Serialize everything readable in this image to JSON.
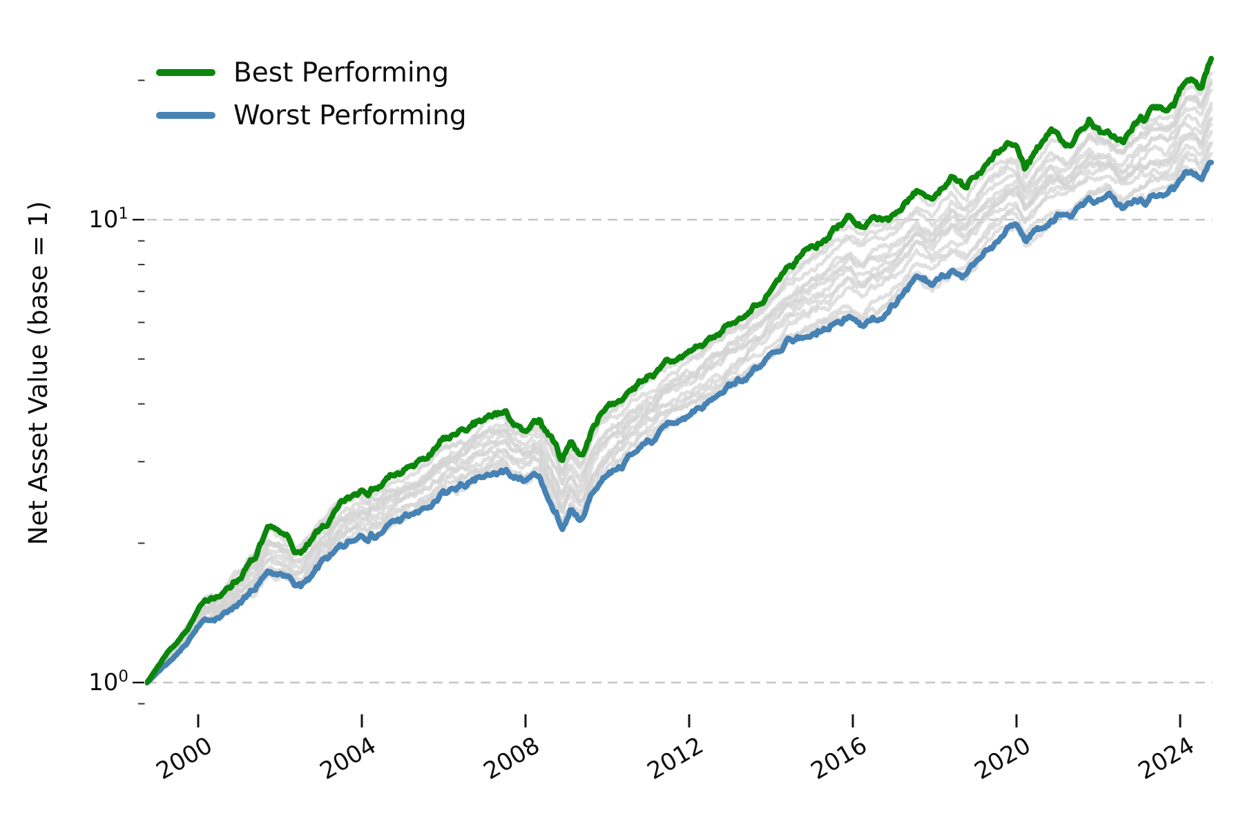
{
  "chart_data": {
    "type": "line",
    "title": "",
    "xlabel": "",
    "ylabel": "Net Asset Value (base = 1)",
    "y_scale": "log",
    "x_range": [
      1998.75,
      2024.76
    ],
    "ylim": [
      0.87,
      24.7
    ],
    "grid": {
      "horizontal_at": [
        1,
        10
      ],
      "style": "dashed",
      "color": "#c5c5c5"
    },
    "x_ticks": {
      "values": [
        2000,
        2004,
        2008,
        2012,
        2016,
        2020,
        2024
      ],
      "labels": [
        "2000",
        "2004",
        "2008",
        "2012",
        "2016",
        "2020",
        "2024"
      ],
      "rotation_deg": 30
    },
    "y_major_ticks": [
      {
        "value": 1,
        "label_base": "10",
        "label_exp": "0"
      },
      {
        "value": 10,
        "label_base": "10",
        "label_exp": "1"
      }
    ],
    "y_minor_tick_values": [
      0.9,
      2,
      3,
      4,
      5,
      6,
      7,
      8,
      9,
      20
    ],
    "legend": {
      "position": "upper-left",
      "items": [
        {
          "label": "Best Performing",
          "color": "#0b860b"
        },
        {
          "label": "Worst Performing",
          "color": "#4682b4"
        }
      ]
    },
    "ensemble": {
      "count": 14,
      "color": "#d4d4d4",
      "opacity": 0.72,
      "note": "unlabeled gray simulated paths spanning between worst and best"
    },
    "series": [
      {
        "name": "Best Performing",
        "color": "#0b860b",
        "points": [
          [
            1998.75,
            1.0
          ],
          [
            1999.0,
            1.08
          ],
          [
            1999.3,
            1.18
          ],
          [
            1999.6,
            1.26
          ],
          [
            1999.85,
            1.38
          ],
          [
            2000.0,
            1.44
          ],
          [
            2000.3,
            1.53
          ],
          [
            2000.6,
            1.57
          ],
          [
            2001.0,
            1.73
          ],
          [
            2001.4,
            1.85
          ],
          [
            2001.75,
            2.08
          ],
          [
            2002.1,
            1.98
          ],
          [
            2002.45,
            1.9
          ],
          [
            2002.8,
            2.03
          ],
          [
            2003.0,
            2.14
          ],
          [
            2003.5,
            2.36
          ],
          [
            2004.0,
            2.56
          ],
          [
            2004.5,
            2.69
          ],
          [
            2005.0,
            2.83
          ],
          [
            2005.5,
            2.95
          ],
          [
            2006.0,
            3.18
          ],
          [
            2006.5,
            3.37
          ],
          [
            2007.0,
            3.56
          ],
          [
            2007.4,
            3.72
          ],
          [
            2007.7,
            3.6
          ],
          [
            2008.0,
            3.47
          ],
          [
            2008.35,
            3.65
          ],
          [
            2008.7,
            3.22
          ],
          [
            2008.9,
            2.96
          ],
          [
            2009.1,
            3.28
          ],
          [
            2009.35,
            3.06
          ],
          [
            2009.7,
            3.62
          ],
          [
            2010.0,
            3.92
          ],
          [
            2010.5,
            4.28
          ],
          [
            2011.0,
            4.66
          ],
          [
            2011.5,
            4.88
          ],
          [
            2012.0,
            5.12
          ],
          [
            2012.5,
            5.45
          ],
          [
            2013.0,
            5.86
          ],
          [
            2013.5,
            6.42
          ],
          [
            2014.0,
            7.12
          ],
          [
            2014.5,
            7.65
          ],
          [
            2015.0,
            8.6
          ],
          [
            2015.45,
            9.35
          ],
          [
            2015.9,
            10.05
          ],
          [
            2016.2,
            9.7
          ],
          [
            2016.55,
            10.1
          ],
          [
            2017.0,
            10.65
          ],
          [
            2017.6,
            11.15
          ],
          [
            2017.95,
            10.8
          ],
          [
            2018.4,
            12.4
          ],
          [
            2018.75,
            11.1
          ],
          [
            2019.0,
            11.9
          ],
          [
            2019.5,
            13.2
          ],
          [
            2020.0,
            13.9
          ],
          [
            2020.2,
            12.5
          ],
          [
            2020.55,
            13.9
          ],
          [
            2020.85,
            15.3
          ],
          [
            2021.2,
            14.5
          ],
          [
            2021.8,
            16.8
          ],
          [
            2022.3,
            15.3
          ],
          [
            2022.6,
            14.8
          ],
          [
            2023.0,
            16.3
          ],
          [
            2023.5,
            17.3
          ],
          [
            2023.85,
            17.7
          ],
          [
            2024.05,
            19.0
          ],
          [
            2024.35,
            20.0
          ],
          [
            2024.5,
            19.3
          ],
          [
            2024.76,
            22.0
          ]
        ]
      },
      {
        "name": "Worst Performing",
        "color": "#4682b4",
        "points": [
          [
            1998.75,
            1.0
          ],
          [
            1999.0,
            1.05
          ],
          [
            1999.3,
            1.12
          ],
          [
            1999.6,
            1.2
          ],
          [
            1999.85,
            1.28
          ],
          [
            2000.0,
            1.33
          ],
          [
            2000.3,
            1.38
          ],
          [
            2000.6,
            1.41
          ],
          [
            2001.0,
            1.52
          ],
          [
            2001.4,
            1.58
          ],
          [
            2001.75,
            1.68
          ],
          [
            2002.1,
            1.62
          ],
          [
            2002.45,
            1.56
          ],
          [
            2002.8,
            1.65
          ],
          [
            2003.0,
            1.72
          ],
          [
            2003.5,
            1.88
          ],
          [
            2004.0,
            2.03
          ],
          [
            2004.5,
            2.13
          ],
          [
            2005.0,
            2.24
          ],
          [
            2005.5,
            2.32
          ],
          [
            2006.0,
            2.48
          ],
          [
            2006.5,
            2.6
          ],
          [
            2007.0,
            2.71
          ],
          [
            2007.4,
            2.81
          ],
          [
            2007.7,
            2.73
          ],
          [
            2008.0,
            2.63
          ],
          [
            2008.35,
            2.73
          ],
          [
            2008.7,
            2.38
          ],
          [
            2008.9,
            2.17
          ],
          [
            2009.1,
            2.41
          ],
          [
            2009.35,
            2.26
          ],
          [
            2009.7,
            2.63
          ],
          [
            2010.0,
            2.87
          ],
          [
            2010.5,
            3.12
          ],
          [
            2011.0,
            3.38
          ],
          [
            2011.5,
            3.56
          ],
          [
            2012.0,
            3.8
          ],
          [
            2012.5,
            4.02
          ],
          [
            2013.0,
            4.3
          ],
          [
            2013.5,
            4.66
          ],
          [
            2014.0,
            5.0
          ],
          [
            2014.5,
            5.28
          ],
          [
            2015.0,
            5.56
          ],
          [
            2015.45,
            5.82
          ],
          [
            2015.9,
            6.05
          ],
          [
            2016.2,
            5.95
          ],
          [
            2016.55,
            6.18
          ],
          [
            2017.0,
            6.92
          ],
          [
            2017.6,
            7.32
          ],
          [
            2017.95,
            7.15
          ],
          [
            2018.4,
            7.88
          ],
          [
            2018.75,
            7.42
          ],
          [
            2019.0,
            7.86
          ],
          [
            2019.5,
            8.6
          ],
          [
            2020.0,
            9.3
          ],
          [
            2020.2,
            8.7
          ],
          [
            2020.55,
            9.35
          ],
          [
            2020.85,
            9.9
          ],
          [
            2021.2,
            10.3
          ],
          [
            2021.8,
            11.2
          ],
          [
            2022.3,
            11.45
          ],
          [
            2022.6,
            10.7
          ],
          [
            2023.0,
            10.85
          ],
          [
            2023.5,
            11.35
          ],
          [
            2023.85,
            11.55
          ],
          [
            2024.05,
            12.2
          ],
          [
            2024.35,
            12.45
          ],
          [
            2024.5,
            12.2
          ],
          [
            2024.76,
            13.3
          ]
        ]
      }
    ]
  }
}
